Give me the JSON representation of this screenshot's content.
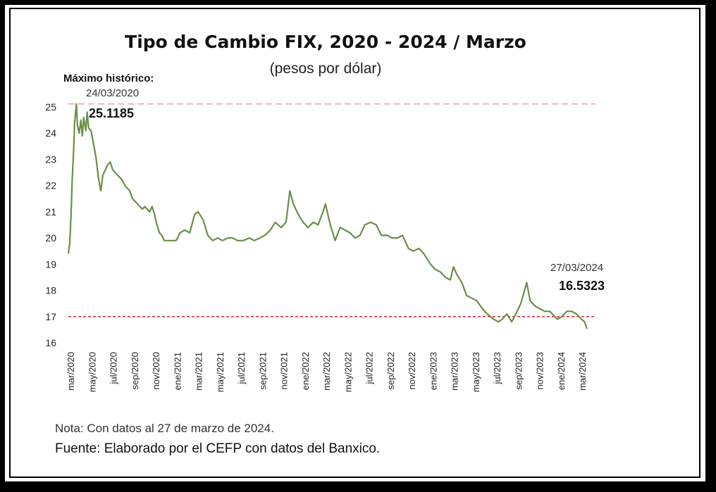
{
  "chart_data": {
    "type": "line",
    "title": "Tipo de Cambio FIX, 2020 - 2024 / Marzo",
    "subtitle": "(pesos por dólar)",
    "xlabel": "",
    "ylabel": "",
    "ylim": [
      16,
      25
    ],
    "yticks": [
      16,
      17,
      18,
      19,
      20,
      21,
      22,
      23,
      24,
      25
    ],
    "x_tick_labels": [
      "mar/2020",
      "may/2020",
      "jul/2020",
      "sep/2020",
      "nov/2020",
      "ene/2021",
      "mar/2021",
      "may/2021",
      "jul/2021",
      "sep/2021",
      "nov/2021",
      "ene/2022",
      "mar/2022",
      "may/2022",
      "jul/2022",
      "sep/2022",
      "nov/2022",
      "ene/2023",
      "mar/2023",
      "may/2023",
      "jul/2023",
      "sep/2023",
      "nov/2023",
      "ene/2024",
      "mar/2024"
    ],
    "grid": false,
    "legend": "none",
    "line_color": "#6b8f47",
    "series": [
      {
        "x": [
          "2020-03-01",
          "2020-03-05",
          "2020-03-09",
          "2020-03-12",
          "2020-03-16",
          "2020-03-19",
          "2020-03-24",
          "2020-03-27",
          "2020-04-01",
          "2020-04-06",
          "2020-04-10",
          "2020-04-14",
          "2020-04-20",
          "2020-04-24",
          "2020-04-28",
          "2020-05-05",
          "2020-05-12",
          "2020-05-19",
          "2020-05-26",
          "2020-06-02",
          "2020-06-08",
          "2020-06-15",
          "2020-06-22",
          "2020-06-29",
          "2020-07-06",
          "2020-07-13",
          "2020-07-20",
          "2020-07-27",
          "2020-08-03",
          "2020-08-10",
          "2020-08-17",
          "2020-08-24",
          "2020-09-01",
          "2020-09-08",
          "2020-09-15",
          "2020-09-22",
          "2020-09-29",
          "2020-10-06",
          "2020-10-13",
          "2020-10-20",
          "2020-10-27",
          "2020-11-03",
          "2020-11-10",
          "2020-11-17",
          "2020-11-24",
          "2020-12-01",
          "2020-12-15",
          "2021-01-04",
          "2021-01-15",
          "2021-01-29",
          "2021-02-12",
          "2021-02-26",
          "2021-03-08",
          "2021-03-22",
          "2021-04-05",
          "2021-04-19",
          "2021-05-03",
          "2021-05-17",
          "2021-06-01",
          "2021-06-15",
          "2021-06-29",
          "2021-07-15",
          "2021-08-02",
          "2021-08-16",
          "2021-09-01",
          "2021-09-15",
          "2021-10-01",
          "2021-10-15",
          "2021-11-01",
          "2021-11-15",
          "2021-11-26",
          "2021-12-06",
          "2021-12-20",
          "2022-01-03",
          "2022-01-17",
          "2022-02-01",
          "2022-02-15",
          "2022-03-01",
          "2022-03-08",
          "2022-03-22",
          "2022-04-05",
          "2022-04-19",
          "2022-05-03",
          "2022-05-17",
          "2022-06-01",
          "2022-06-15",
          "2022-06-29",
          "2022-07-15",
          "2022-08-01",
          "2022-08-15",
          "2022-09-01",
          "2022-09-15",
          "2022-10-01",
          "2022-10-15",
          "2022-11-01",
          "2022-11-15",
          "2022-12-01",
          "2022-12-15",
          "2023-01-03",
          "2023-01-17",
          "2023-02-01",
          "2023-02-15",
          "2023-03-01",
          "2023-03-10",
          "2023-03-20",
          "2023-04-03",
          "2023-04-17",
          "2023-05-02",
          "2023-05-16",
          "2023-06-01",
          "2023-06-15",
          "2023-07-03",
          "2023-07-17",
          "2023-07-28",
          "2023-08-10",
          "2023-08-24",
          "2023-09-05",
          "2023-09-19",
          "2023-10-02",
          "2023-10-06",
          "2023-10-16",
          "2023-10-30",
          "2023-11-13",
          "2023-11-27",
          "2023-12-11",
          "2024-01-02",
          "2024-01-15",
          "2024-01-29",
          "2024-02-12",
          "2024-02-26",
          "2024-03-11",
          "2024-03-20",
          "2024-03-27"
        ],
        "values": [
          19.4,
          19.8,
          21.0,
          22.2,
          23.3,
          24.4,
          25.1185,
          24.3,
          24.0,
          24.5,
          23.9,
          24.6,
          24.1,
          24.8,
          24.2,
          24.1,
          23.6,
          23.1,
          22.3,
          21.8,
          22.4,
          22.6,
          22.8,
          22.9,
          22.6,
          22.5,
          22.4,
          22.3,
          22.2,
          22.0,
          21.9,
          21.8,
          21.5,
          21.4,
          21.3,
          21.2,
          21.1,
          21.2,
          21.1,
          21.0,
          21.2,
          20.9,
          20.5,
          20.2,
          20.1,
          19.9,
          19.9,
          19.9,
          20.2,
          20.3,
          20.2,
          20.9,
          21.0,
          20.7,
          20.1,
          19.9,
          20.0,
          19.9,
          20.0,
          20.0,
          19.9,
          19.9,
          20.0,
          19.9,
          20.0,
          20.1,
          20.3,
          20.6,
          20.4,
          20.6,
          21.8,
          21.3,
          20.9,
          20.6,
          20.4,
          20.6,
          20.5,
          21.0,
          21.3,
          20.5,
          19.9,
          20.4,
          20.3,
          20.2,
          20.0,
          20.1,
          20.5,
          20.6,
          20.5,
          20.1,
          20.1,
          20.0,
          20.0,
          20.1,
          19.6,
          19.5,
          19.6,
          19.4,
          19.0,
          18.8,
          18.7,
          18.5,
          18.4,
          18.9,
          18.6,
          18.3,
          17.8,
          17.7,
          17.6,
          17.3,
          17.1,
          16.9,
          16.8,
          16.9,
          17.1,
          16.8,
          17.1,
          17.5,
          18.1,
          18.3,
          17.6,
          17.4,
          17.3,
          17.2,
          17.2,
          16.9,
          17.0,
          17.2,
          17.2,
          17.1,
          16.9,
          16.8,
          16.5323
        ]
      }
    ],
    "reference_lines": [
      {
        "y": 25.1185,
        "style": "dashed",
        "color": "#f2b3b8"
      },
      {
        "y": 17.0,
        "style": "dashed",
        "color": "#d9262c"
      }
    ],
    "annotations": {
      "max_label": "Máximo histórico:",
      "max_date": "24/03/2020",
      "max_value": "25.1185",
      "last_date": "27/03/2024",
      "last_value": "16.5323"
    }
  },
  "footer": {
    "note": "Nota: Con datos al 27 de marzo de 2024.",
    "source": "Fuente: Elaborado por el CEFP con datos del Banxico."
  }
}
